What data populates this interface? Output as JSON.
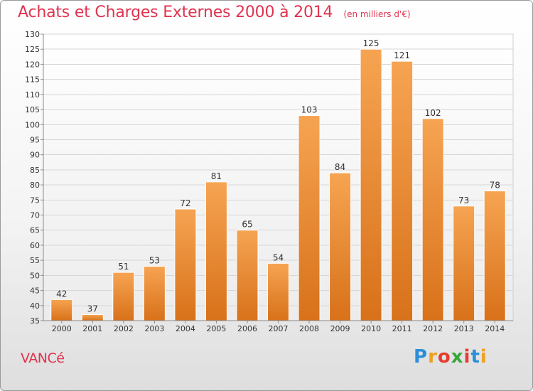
{
  "chart_data": {
    "type": "bar",
    "title": "Achats et Charges Externes 2000 à 2014",
    "subtitle": "(en milliers d'€)",
    "categories": [
      "2000",
      "2001",
      "2002",
      "2003",
      "2004",
      "2005",
      "2006",
      "2007",
      "2008",
      "2009",
      "2010",
      "2011",
      "2012",
      "2013",
      "2014"
    ],
    "values": [
      42,
      37,
      51,
      53,
      72,
      81,
      65,
      54,
      103,
      84,
      125,
      121,
      102,
      73,
      78
    ],
    "ylim": [
      35,
      130
    ],
    "yticks": [
      35,
      40,
      45,
      50,
      55,
      60,
      65,
      70,
      75,
      80,
      85,
      90,
      95,
      100,
      105,
      110,
      115,
      120,
      125,
      130
    ],
    "grid": true,
    "bar_color": "#f0943c"
  },
  "footer": {
    "place": "VANCé",
    "logo": {
      "letters": [
        "P",
        "r",
        "o",
        "x",
        "i",
        "t",
        "i"
      ],
      "colors": [
        "#2c8fd6",
        "#f0a020",
        "#e63b2e",
        "#3aa63a",
        "#e63b2e",
        "#2c8fd6",
        "#f0a020"
      ]
    }
  }
}
